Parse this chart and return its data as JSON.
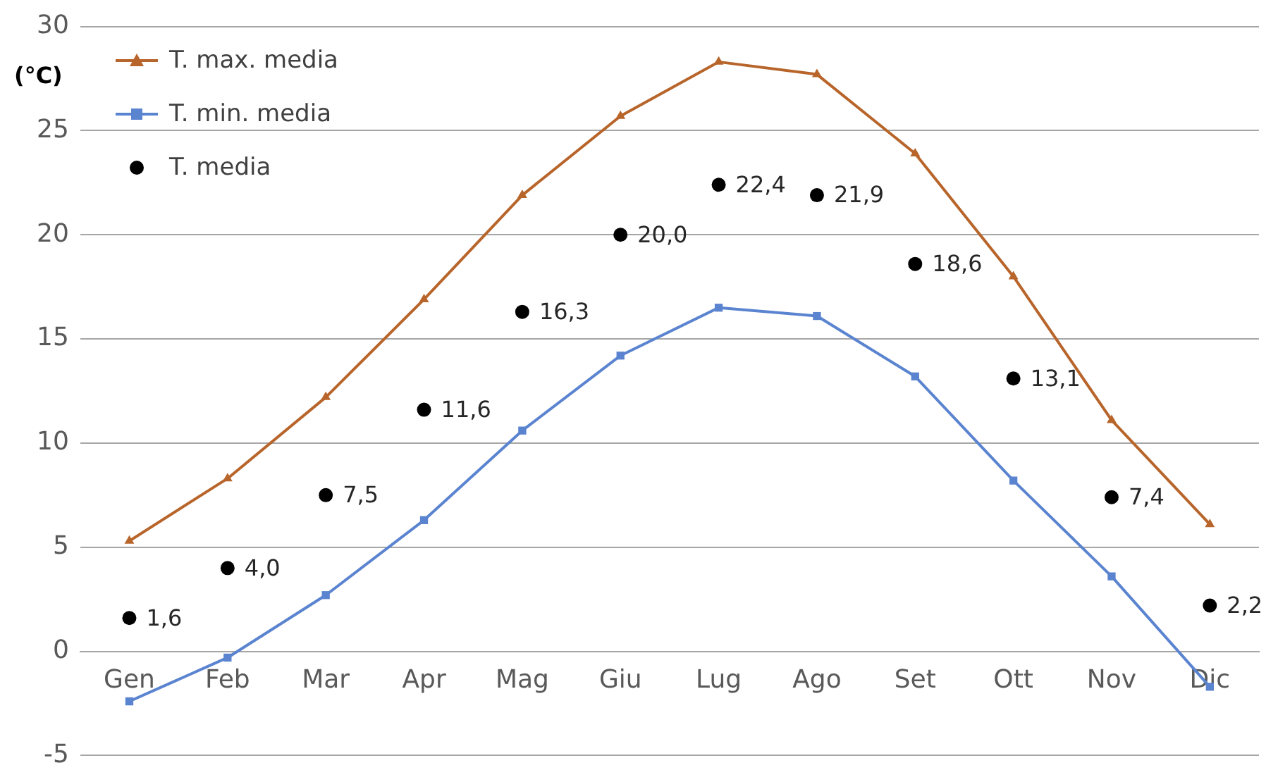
{
  "chart_data": {
    "type": "line",
    "ylabel": "(°C)",
    "categories": [
      "Gen",
      "Feb",
      "Mar",
      "Apr",
      "Mag",
      "Giu",
      "Lug",
      "Ago",
      "Set",
      "Ott",
      "Nov",
      "Dic"
    ],
    "series": [
      {
        "name": "T. max. media",
        "marker": "triangle",
        "color": "#b8652b",
        "values": [
          5.3,
          8.3,
          12.2,
          16.9,
          21.9,
          25.7,
          28.3,
          27.7,
          23.9,
          18.0,
          11.1,
          6.1
        ]
      },
      {
        "name": "T. min. media",
        "marker": "square",
        "color": "#5b84d0",
        "values": [
          -2.4,
          -0.3,
          2.7,
          6.3,
          10.6,
          14.2,
          16.5,
          16.1,
          13.2,
          8.2,
          3.6,
          -1.7
        ]
      },
      {
        "name": "T. media",
        "type": "scatter",
        "marker": "circle",
        "color": "#000000",
        "values": [
          1.6,
          4.0,
          7.5,
          11.6,
          16.3,
          20.0,
          22.4,
          21.9,
          18.6,
          13.1,
          7.4,
          2.2
        ],
        "value_labels": [
          "1,6",
          "4,0",
          "7,5",
          "11,6",
          "16,3",
          "20,0",
          "22,4",
          "21,9",
          "18,6",
          "13,1",
          "7,4",
          "2,2"
        ]
      }
    ],
    "ylim": [
      -5,
      30
    ],
    "yticks": [
      -5,
      0,
      5,
      10,
      15,
      20,
      25,
      30
    ],
    "grid": "y",
    "legend": "top left"
  }
}
